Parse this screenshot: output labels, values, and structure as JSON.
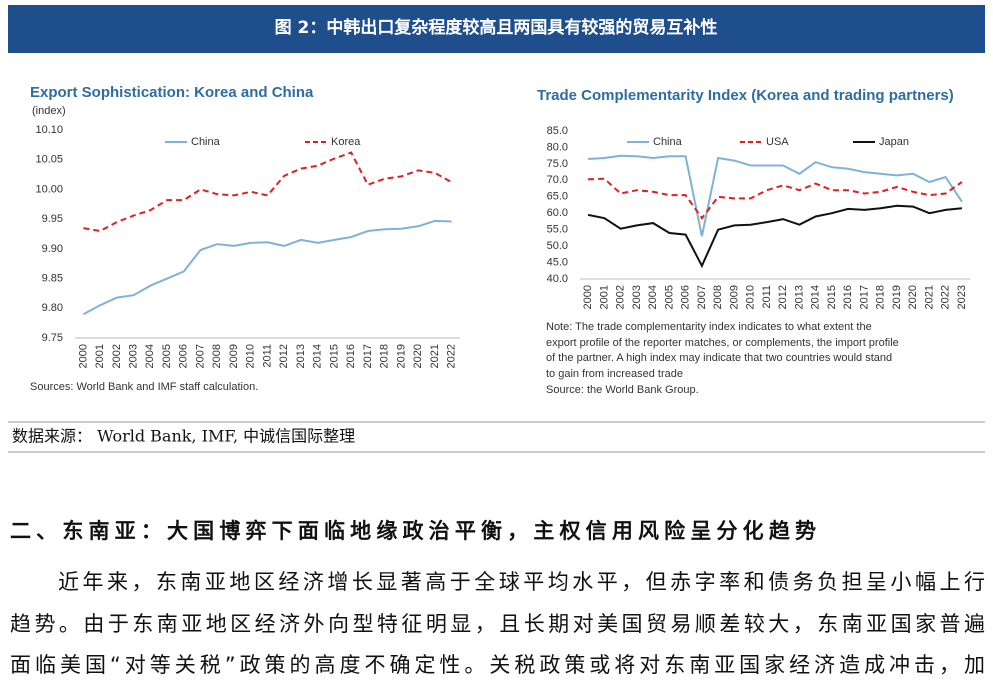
{
  "figure_title": "图 2：中韩出口复杂程度较高且两国具有较强的贸易互补性",
  "chart_data": [
    {
      "type": "line",
      "title": "Export Sophistication: Korea and China",
      "y_label": "(index)",
      "categories": [
        "2000",
        "2001",
        "2002",
        "2003",
        "2004",
        "2005",
        "2006",
        "2007",
        "2008",
        "2009",
        "2010",
        "2011",
        "2012",
        "2013",
        "2014",
        "2015",
        "2016",
        "2017",
        "2018",
        "2019",
        "2020",
        "2021",
        "2022"
      ],
      "series": [
        {
          "name": "China",
          "color": "#7fb2d8",
          "dash": false,
          "values": [
            9.79,
            9.805,
            9.818,
            9.822,
            9.838,
            9.85,
            9.862,
            9.898,
            9.908,
            9.905,
            9.91,
            9.911,
            9.905,
            9.915,
            9.91,
            9.915,
            9.92,
            9.93,
            9.933,
            9.934,
            9.938,
            9.947,
            9.946
          ]
        },
        {
          "name": "Korea",
          "color": "#e02020",
          "dash": true,
          "values": [
            9.935,
            9.93,
            9.945,
            9.956,
            9.965,
            9.982,
            9.982,
            10.0,
            9.992,
            9.99,
            9.996,
            9.99,
            10.023,
            10.035,
            10.04,
            10.052,
            10.062,
            10.008,
            10.018,
            10.022,
            10.032,
            10.028,
            10.012
          ]
        }
      ],
      "ylim": [
        9.75,
        10.1
      ],
      "yticks": [
        9.75,
        {
          "value": 9.8,
          "label": "9.80"
        },
        9.85,
        {
          "value": 9.9,
          "label": "9.90"
        },
        9.95,
        {
          "value": 10.0,
          "label": "10.00"
        },
        10.05,
        {
          "value": 10.1,
          "label": "10.10"
        }
      ],
      "grid": false,
      "source": "Sources: World Bank and IMF staff calculation."
    },
    {
      "type": "line",
      "title": "Trade Complementarity Index (Korea and trading partners)",
      "categories": [
        "2000",
        "2001",
        "2002",
        "2003",
        "2004",
        "2005",
        "2006",
        "2007",
        "2008",
        "2009",
        "2010",
        "2011",
        "2012",
        "2013",
        "2014",
        "2015",
        "2016",
        "2017",
        "2018",
        "2019",
        "2020",
        "2021",
        "2022",
        "2023"
      ],
      "series": [
        {
          "name": "China",
          "color": "#7fb2d8",
          "dash": false,
          "values": [
            76.5,
            76.8,
            77.5,
            77.3,
            76.8,
            77.3,
            77.3,
            53,
            76.8,
            76,
            74.5,
            74.5,
            74.5,
            72,
            75.5,
            74,
            73.5,
            72.5,
            72,
            71.5,
            72,
            69.5,
            71,
            63.5
          ]
        },
        {
          "name": "USA",
          "color": "#e02020",
          "dash": true,
          "values": [
            70.3,
            70.5,
            66,
            67,
            66.5,
            65.5,
            65.5,
            58.5,
            65,
            64.5,
            64.5,
            67,
            68.5,
            67,
            69,
            67,
            67,
            66,
            66.5,
            68,
            66.5,
            65.5,
            66,
            69.5
          ]
        },
        {
          "name": "Japan",
          "color": "#111111",
          "dash": false,
          "values": [
            59.5,
            58.5,
            55.3,
            56.3,
            57,
            54,
            53.5,
            44,
            55,
            56.3,
            56.5,
            57.3,
            58.2,
            56.5,
            59,
            60,
            61.3,
            61,
            61.5,
            62.3,
            62,
            60,
            61,
            61.5
          ]
        }
      ],
      "ylim": [
        40,
        85
      ],
      "yticks": [
        {
          "value": 40,
          "label": "40.0"
        },
        {
          "value": 45,
          "label": "45.0"
        },
        {
          "value": 50,
          "label": "50.0"
        },
        {
          "value": 55,
          "label": "55.0"
        },
        {
          "value": 60,
          "label": "60.0"
        },
        {
          "value": 65,
          "label": "65.0"
        },
        {
          "value": 70,
          "label": "70.0"
        },
        {
          "value": 75,
          "label": "75.0"
        },
        {
          "value": 80,
          "label": "80.0"
        },
        {
          "value": 85,
          "label": "85.0"
        }
      ],
      "grid": false,
      "note": [
        "Note: The trade complementarity index indicates to what extent the",
        "export profile of the reporter matches, or complements, the import profile",
        "of the partner. A high index may indicate that two countries would stand",
        "to gain from increased trade"
      ],
      "source": "Source: the World Bank Group."
    }
  ],
  "data_source": "数据来源： World Bank, IMF, 中诚信国际整理",
  "section_heading": "二、东南亚：大国博弈下面临地缘政治平衡，主权信用风险呈分化趋势",
  "paragraph_lines": [
    "近年来，东南亚地区经济增长显著高于全球平均水平，但赤字率和债务负担呈小幅上行",
    "趋势。由于东南亚地区经济外向型特征明显，且长期对美国贸易顺差较大，东南亚国家普遍",
    "面临美国“对等关税”政策的高度不确定性。关税政策或将对东南亚国家经济造成冲击，加"
  ]
}
